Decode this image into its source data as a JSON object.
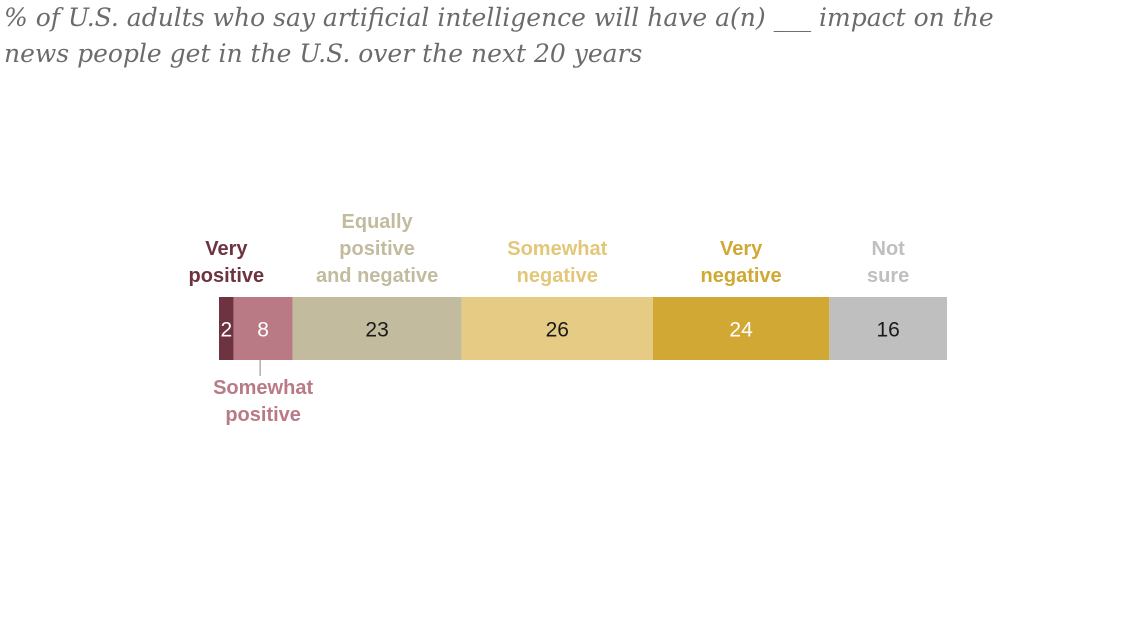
{
  "chart_data": {
    "type": "bar",
    "orientation": "horizontal-stacked",
    "subtitle": "% of U.S. adults who say artificial intelligence will have a(n) ___ impact on the news people get in the U.S. over the next 20 years",
    "series": [
      {
        "name": "Very positive",
        "label_lines": [
          "Very",
          "positive"
        ],
        "value": 2,
        "value_label": "2",
        "color": "#6e3340",
        "text_color": "#ffffff",
        "label_color": "#6e3340",
        "label_position": "above"
      },
      {
        "name": "Somewhat positive",
        "label_lines": [
          "Somewhat",
          "positive"
        ],
        "value": 8,
        "value_label": "8",
        "color": "#b97a86",
        "text_color": "#ffffff",
        "label_color": "#b97a86",
        "label_position": "below"
      },
      {
        "name": "Equally positive and negative",
        "label_lines": [
          "Equally",
          "positive",
          "and negative"
        ],
        "value": 23,
        "value_label": "23",
        "color": "#c2bb9e",
        "text_color": "#1a1a1a",
        "label_color": "#c2bb9e",
        "label_position": "above"
      },
      {
        "name": "Somewhat negative",
        "label_lines": [
          "Somewhat",
          "negative"
        ],
        "value": 26,
        "value_label": "26",
        "color": "#e5cb83",
        "text_color": "#1a1a1a",
        "label_color": "#e3c779",
        "label_position": "above"
      },
      {
        "name": "Very negative",
        "label_lines": [
          "Very",
          "negative"
        ],
        "value": 24,
        "value_label": "24",
        "color": "#d1a833",
        "text_color": "#ffffff",
        "label_color": "#d1a833",
        "label_position": "above"
      },
      {
        "name": "Not sure",
        "label_lines": [
          "Not",
          "sure"
        ],
        "value": 16,
        "value_label": "16",
        "color": "#bfbfbf",
        "text_color": "#1a1a1a",
        "label_color": "#bfbfbf",
        "label_position": "above"
      }
    ]
  }
}
